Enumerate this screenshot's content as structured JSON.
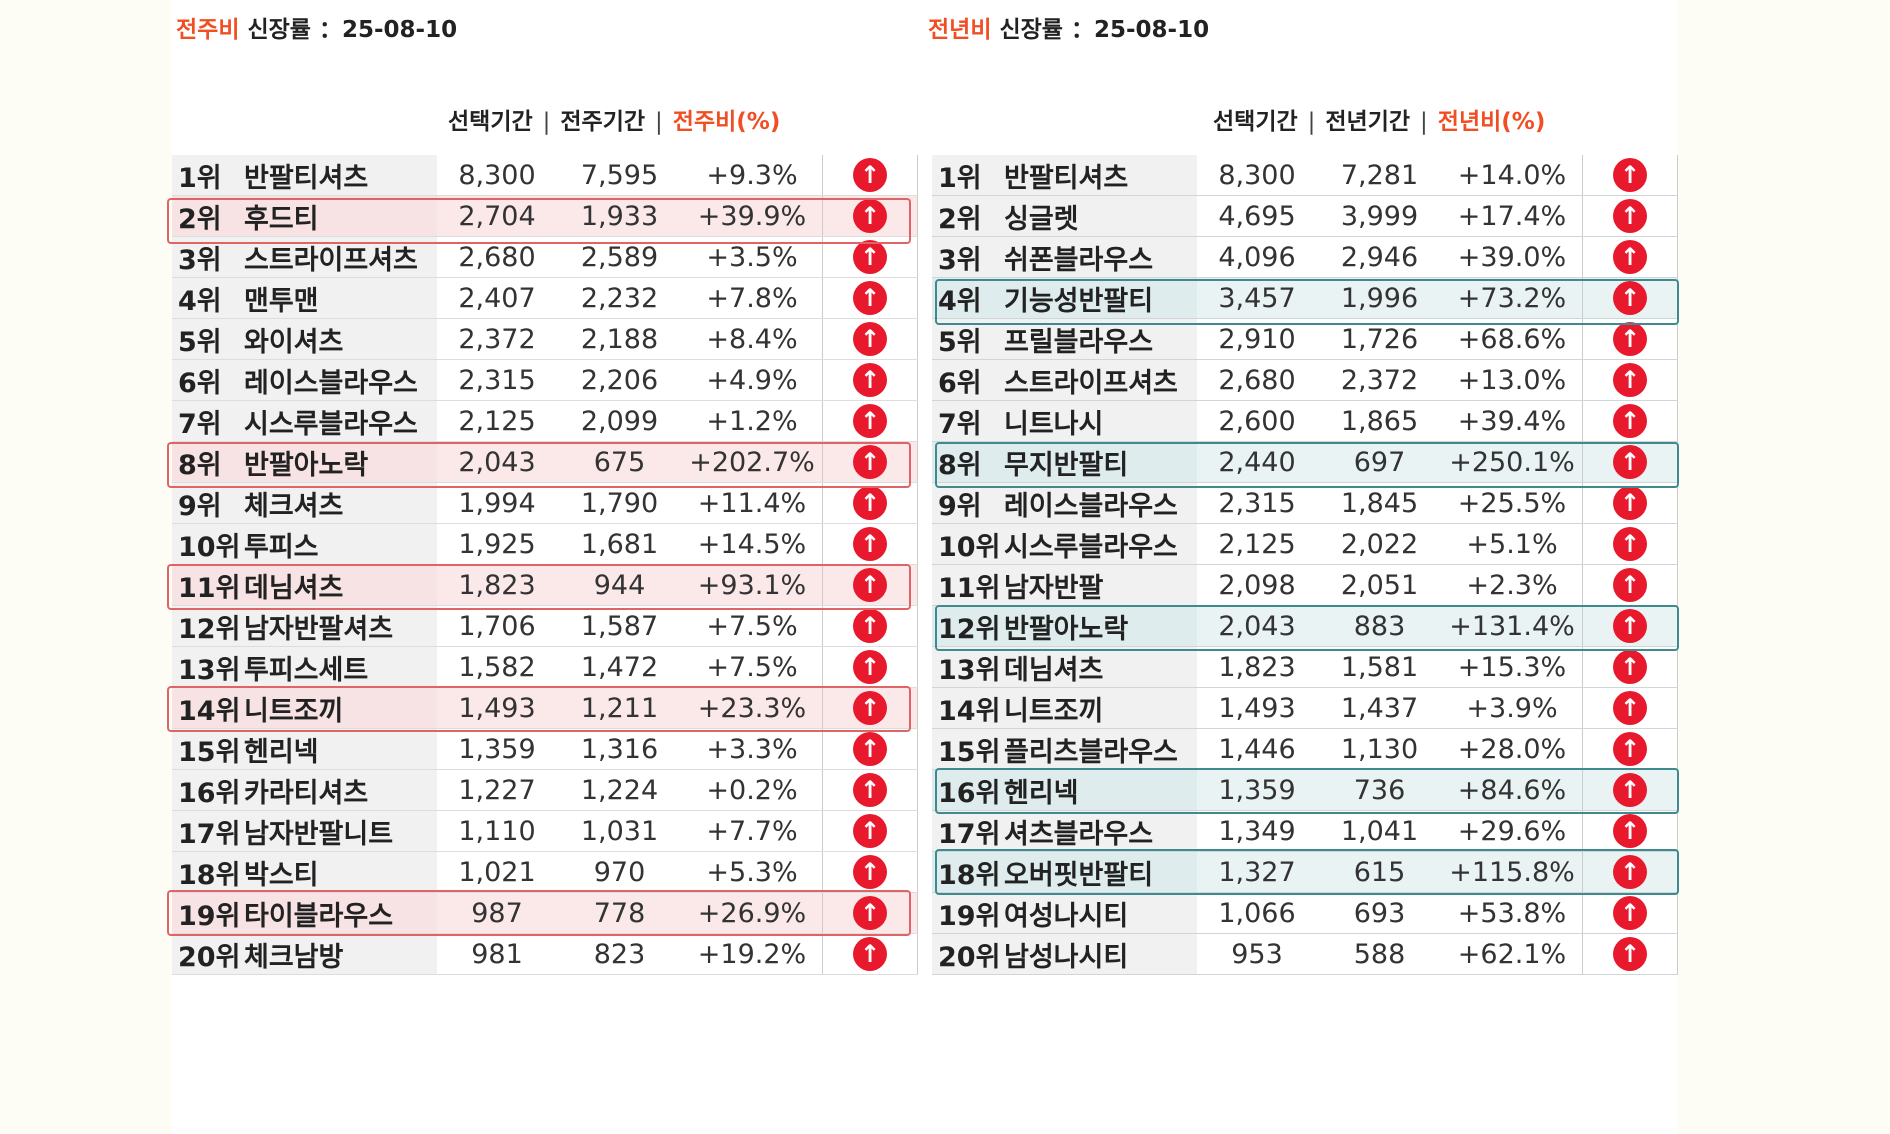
{
  "left": {
    "title_accent": "전주비",
    "title_rest": " 신장률 ：25-08-10",
    "headers": [
      "선택기간",
      "전주기간",
      "전주비(%)"
    ],
    "rows": [
      {
        "rank": "1위",
        "name": "반팔티셔츠",
        "v1": "8,300",
        "v2": "7,595",
        "pct": "+9.3%",
        "hl": false
      },
      {
        "rank": "2위",
        "name": "후드티",
        "v1": "2,704",
        "v2": "1,933",
        "pct": "+39.9%",
        "hl": true
      },
      {
        "rank": "3위",
        "name": "스트라이프셔츠",
        "v1": "2,680",
        "v2": "2,589",
        "pct": "+3.5%",
        "hl": false
      },
      {
        "rank": "4위",
        "name": "맨투맨",
        "v1": "2,407",
        "v2": "2,232",
        "pct": "+7.8%",
        "hl": false
      },
      {
        "rank": "5위",
        "name": "와이셔츠",
        "v1": "2,372",
        "v2": "2,188",
        "pct": "+8.4%",
        "hl": false
      },
      {
        "rank": "6위",
        "name": "레이스블라우스",
        "v1": "2,315",
        "v2": "2,206",
        "pct": "+4.9%",
        "hl": false
      },
      {
        "rank": "7위",
        "name": "시스루블라우스",
        "v1": "2,125",
        "v2": "2,099",
        "pct": "+1.2%",
        "hl": false
      },
      {
        "rank": "8위",
        "name": "반팔아노락",
        "v1": "2,043",
        "v2": "675",
        "pct": "+202.7%",
        "hl": true
      },
      {
        "rank": "9위",
        "name": "체크셔츠",
        "v1": "1,994",
        "v2": "1,790",
        "pct": "+11.4%",
        "hl": false
      },
      {
        "rank": "10위",
        "name": "투피스",
        "v1": "1,925",
        "v2": "1,681",
        "pct": "+14.5%",
        "hl": false
      },
      {
        "rank": "11위",
        "name": "데님셔츠",
        "v1": "1,823",
        "v2": "944",
        "pct": "+93.1%",
        "hl": true
      },
      {
        "rank": "12위",
        "name": "남자반팔셔츠",
        "v1": "1,706",
        "v2": "1,587",
        "pct": "+7.5%",
        "hl": false
      },
      {
        "rank": "13위",
        "name": "투피스세트",
        "v1": "1,582",
        "v2": "1,472",
        "pct": "+7.5%",
        "hl": false
      },
      {
        "rank": "14위",
        "name": "니트조끼",
        "v1": "1,493",
        "v2": "1,211",
        "pct": "+23.3%",
        "hl": true
      },
      {
        "rank": "15위",
        "name": "헨리넥",
        "v1": "1,359",
        "v2": "1,316",
        "pct": "+3.3%",
        "hl": false
      },
      {
        "rank": "16위",
        "name": "카라티셔츠",
        "v1": "1,227",
        "v2": "1,224",
        "pct": "+0.2%",
        "hl": false
      },
      {
        "rank": "17위",
        "name": "남자반팔니트",
        "v1": "1,110",
        "v2": "1,031",
        "pct": "+7.7%",
        "hl": false
      },
      {
        "rank": "18위",
        "name": "박스티",
        "v1": "1,021",
        "v2": "970",
        "pct": "+5.3%",
        "hl": false
      },
      {
        "rank": "19위",
        "name": "타이블라우스",
        "v1": "987",
        "v2": "778",
        "pct": "+26.9%",
        "hl": true
      },
      {
        "rank": "20위",
        "name": "체크남방",
        "v1": "981",
        "v2": "823",
        "pct": "+19.2%",
        "hl": false
      }
    ]
  },
  "right": {
    "title_accent": "전년비",
    "title_rest": " 신장률 ：25-08-10",
    "headers": [
      "선택기간",
      "전년기간",
      "전년비(%)"
    ],
    "rows": [
      {
        "rank": "1위",
        "name": "반팔티셔츠",
        "v1": "8,300",
        "v2": "7,281",
        "pct": "+14.0%",
        "hl": false
      },
      {
        "rank": "2위",
        "name": "싱글렛",
        "v1": "4,695",
        "v2": "3,999",
        "pct": "+17.4%",
        "hl": false
      },
      {
        "rank": "3위",
        "name": "쉬폰블라우스",
        "v1": "4,096",
        "v2": "2,946",
        "pct": "+39.0%",
        "hl": false
      },
      {
        "rank": "4위",
        "name": "기능성반팔티",
        "v1": "3,457",
        "v2": "1,996",
        "pct": "+73.2%",
        "hl": true
      },
      {
        "rank": "5위",
        "name": "프릴블라우스",
        "v1": "2,910",
        "v2": "1,726",
        "pct": "+68.6%",
        "hl": false
      },
      {
        "rank": "6위",
        "name": "스트라이프셔츠",
        "v1": "2,680",
        "v2": "2,372",
        "pct": "+13.0%",
        "hl": false
      },
      {
        "rank": "7위",
        "name": "니트나시",
        "v1": "2,600",
        "v2": "1,865",
        "pct": "+39.4%",
        "hl": false
      },
      {
        "rank": "8위",
        "name": "무지반팔티",
        "v1": "2,440",
        "v2": "697",
        "pct": "+250.1%",
        "hl": true
      },
      {
        "rank": "9위",
        "name": "레이스블라우스",
        "v1": "2,315",
        "v2": "1,845",
        "pct": "+25.5%",
        "hl": false
      },
      {
        "rank": "10위",
        "name": "시스루블라우스",
        "v1": "2,125",
        "v2": "2,022",
        "pct": "+5.1%",
        "hl": false
      },
      {
        "rank": "11위",
        "name": "남자반팔",
        "v1": "2,098",
        "v2": "2,051",
        "pct": "+2.3%",
        "hl": false
      },
      {
        "rank": "12위",
        "name": "반팔아노락",
        "v1": "2,043",
        "v2": "883",
        "pct": "+131.4%",
        "hl": true
      },
      {
        "rank": "13위",
        "name": "데님셔츠",
        "v1": "1,823",
        "v2": "1,581",
        "pct": "+15.3%",
        "hl": false
      },
      {
        "rank": "14위",
        "name": "니트조끼",
        "v1": "1,493",
        "v2": "1,437",
        "pct": "+3.9%",
        "hl": false
      },
      {
        "rank": "15위",
        "name": "플리츠블라우스",
        "v1": "1,446",
        "v2": "1,130",
        "pct": "+28.0%",
        "hl": false
      },
      {
        "rank": "16위",
        "name": "헨리넥",
        "v1": "1,359",
        "v2": "736",
        "pct": "+84.6%",
        "hl": true
      },
      {
        "rank": "17위",
        "name": "셔츠블라우스",
        "v1": "1,349",
        "v2": "1,041",
        "pct": "+29.6%",
        "hl": false
      },
      {
        "rank": "18위",
        "name": "오버핏반팔티",
        "v1": "1,327",
        "v2": "615",
        "pct": "+115.8%",
        "hl": true
      },
      {
        "rank": "19위",
        "name": "여성나시티",
        "v1": "1,066",
        "v2": "693",
        "pct": "+53.8%",
        "hl": false
      },
      {
        "rank": "20위",
        "name": "남성나시티",
        "v1": "953",
        "v2": "588",
        "pct": "+62.1%",
        "hl": false
      }
    ]
  },
  "icons": {
    "up": "arrow-up-icon",
    "up_color": "#e8192c",
    "accent_color": "#f04e23",
    "highlight_left": "#e06466",
    "highlight_right": "#3f8a8f"
  }
}
